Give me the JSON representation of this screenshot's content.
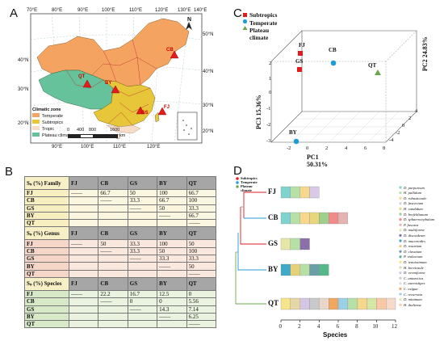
{
  "panel_labels": {
    "a": "A",
    "b": "B",
    "c": "C",
    "d": "D"
  },
  "map": {
    "lon_ticks_top": [
      "70°E",
      "80°E",
      "90°E",
      "100°E",
      "110°E",
      "120°E",
      "130°E",
      "140°E"
    ],
    "lon_ticks_bottom": [
      "90°E",
      "100°E",
      "110°E",
      "120°E"
    ],
    "lat_ticks_left": [
      "40°N",
      "30°N",
      "20°N"
    ],
    "lat_ticks_right": [
      "50°N",
      "40°N",
      "30°N"
    ],
    "inset_lat_right": "20°N",
    "legend": {
      "title": "Climatic zone",
      "items": [
        {
          "label": "Temperate",
          "color": "#f4a460"
        },
        {
          "label": "Subtropics",
          "color": "#e8c63a"
        },
        {
          "label": "Tropic",
          "color": "#f7dcc8"
        },
        {
          "label": "Plateau climate",
          "color": "#66c29a"
        }
      ]
    },
    "scale": {
      "ticks": [
        "0",
        "400",
        "800",
        "1600"
      ],
      "unit": "km"
    },
    "sites": [
      {
        "code": "CB"
      },
      {
        "code": "QT"
      },
      {
        "code": "BY"
      },
      {
        "code": "FJ"
      },
      {
        "code": "GS"
      }
    ],
    "north_arrow": "N"
  },
  "similarity_table": {
    "columns": [
      "FJ",
      "CB",
      "GS",
      "BY",
      "QT"
    ],
    "sections": [
      {
        "title": "Sₛ (%) Family",
        "rows": [
          {
            "label": "FJ",
            "cells": [
              "——",
              "66.7",
              "50",
              "100",
              "66.7"
            ]
          },
          {
            "label": "CB",
            "cells": [
              "",
              "——",
              "33.3",
              "66.7",
              "100"
            ]
          },
          {
            "label": "GS",
            "cells": [
              "",
              "",
              "——",
              "50",
              "33.3"
            ]
          },
          {
            "label": "BY",
            "cells": [
              "",
              "",
              "",
              "——",
              "66.7"
            ]
          },
          {
            "label": "QT",
            "cells": [
              "",
              "",
              "",
              "",
              "——"
            ]
          }
        ]
      },
      {
        "title": "Sₛ (%) Genus",
        "rows": [
          {
            "label": "FJ",
            "cells": [
              "——",
              "50",
              "33.3",
              "100",
              "50"
            ]
          },
          {
            "label": "CB",
            "cells": [
              "",
              "——",
              "33.3",
              "50",
              "100"
            ]
          },
          {
            "label": "GS",
            "cells": [
              "",
              "",
              "——",
              "33.3",
              "33.3"
            ]
          },
          {
            "label": "BY",
            "cells": [
              "",
              "",
              "",
              "——",
              "50"
            ]
          },
          {
            "label": "QT",
            "cells": [
              "",
              "",
              "",
              "",
              "——"
            ]
          }
        ]
      },
      {
        "title": "Sₛ (%) Species",
        "rows": [
          {
            "label": "FJ",
            "cells": [
              "——",
              "22.2",
              "16.7",
              "12.5",
              "0"
            ]
          },
          {
            "label": "CB",
            "cells": [
              "",
              "——",
              "0",
              "0",
              "5.56"
            ]
          },
          {
            "label": "GS",
            "cells": [
              "",
              "",
              "——",
              "14.3",
              "7.14"
            ]
          },
          {
            "label": "BY",
            "cells": [
              "",
              "",
              "",
              "——",
              "6.25"
            ]
          },
          {
            "label": "QT",
            "cells": [
              "",
              "",
              "",
              "",
              "——"
            ]
          }
        ]
      }
    ]
  },
  "chart_data": [
    {
      "type": "scatter",
      "dimensions": 3,
      "legend": [
        {
          "name": "Subtropics",
          "color": "#e41a1c",
          "marker": "square"
        },
        {
          "name": "Temperate",
          "color": "#1f9bd7",
          "marker": "circle"
        },
        {
          "name": "Plateau climate",
          "color": "#6aa84f",
          "marker": "triangle"
        }
      ],
      "axes": {
        "x": {
          "label": "PC1  50.31%",
          "ticks": [
            "-2",
            "0",
            "2",
            "4",
            "6",
            "8"
          ]
        },
        "y": {
          "label": "PC2  24.83%",
          "ticks": [
            "-4",
            "-2",
            "0",
            "2",
            "4"
          ]
        },
        "z": {
          "label": "PC3  15.36%",
          "ticks": [
            "-3",
            "-2",
            "-1",
            "0",
            "1",
            "2"
          ]
        }
      },
      "points": [
        {
          "label": "FJ",
          "group": "Subtropics"
        },
        {
          "label": "GS",
          "group": "Subtropics"
        },
        {
          "label": "CB",
          "group": "Temperate"
        },
        {
          "label": "BY",
          "group": "Temperate"
        },
        {
          "label": "QT",
          "group": "Plateau climate"
        }
      ]
    },
    {
      "type": "bar",
      "orientation": "horizontal",
      "stacked": true,
      "xlabel": "Species",
      "x_ticks": [
        0,
        2,
        4,
        6,
        8,
        10,
        12
      ],
      "xlim": [
        0,
        12
      ],
      "tree_legend": [
        {
          "name": "Subtropics",
          "color": "#e41a1c"
        },
        {
          "name": "Temperate",
          "color": "#1f9bd7"
        },
        {
          "name": "Plateau climate",
          "color": "#6aa84f"
        }
      ],
      "categories": [
        "FJ",
        "CB",
        "GS",
        "BY",
        "QT"
      ],
      "values": [
        4,
        7,
        3,
        5,
        12
      ],
      "segment_colors": {
        "FJ": [
          "#7fd3cf",
          "#b6e0a6",
          "#f6d78b",
          "#d9c9e6"
        ],
        "CB": [
          "#7fd3cf",
          "#b6e0a6",
          "#f6d78b",
          "#e7d67c",
          "#9fcf8a",
          "#f08b8b",
          "#e6b3b3"
        ],
        "GS": [
          "#e6e6a6",
          "#b6e0a6",
          "#8a6fa8"
        ],
        "BY": [
          "#3fa9c9",
          "#e6d17b",
          "#b6e0a6",
          "#6a9fa8",
          "#55b88a"
        ],
        "QT": [
          "#f6e58b",
          "#e6d7a6",
          "#d6c6e6",
          "#c9c9c9",
          "#e9d7c9",
          "#f0a860",
          "#9bd1e6",
          "#b6e0a6",
          "#f6d78b",
          "#d7e6a6",
          "#f7c9a6",
          "#f6d9cb"
        ]
      },
      "species_legend": [
        {
          "name": "D. purpureum",
          "color": "#7fd3cf"
        },
        {
          "name": "H. pallidum",
          "color": "#b6e0a6"
        },
        {
          "name": "D. robusticaule",
          "color": "#f6d78b"
        },
        {
          "name": "D. fuscovium",
          "color": "#d9c9e6"
        },
        {
          "name": "H. candidum",
          "color": "#e7d67c"
        },
        {
          "name": "D. brefeldianum",
          "color": "#9fcf8a"
        },
        {
          "name": "D. sphaerocephalum",
          "color": "#f08b8b"
        },
        {
          "name": "P. fuscans",
          "color": "#e6b3b3"
        },
        {
          "name": "D. multiforme",
          "color": "#e6e6a6"
        },
        {
          "name": "D. discoideum",
          "color": "#8a6fa8"
        },
        {
          "name": "D. mucoroides",
          "color": "#3fa9c9"
        },
        {
          "name": "D. rosarium",
          "color": "#e6d17b"
        },
        {
          "name": "D. clavatum",
          "color": "#6a9fa8"
        },
        {
          "name": "P. violaceum",
          "color": "#55b88a"
        },
        {
          "name": "D. tenuissimum",
          "color": "#f6e58b"
        },
        {
          "name": "H. brevicaule",
          "color": "#e6d7a6"
        },
        {
          "name": "D. vermiforme",
          "color": "#d6c6e6"
        },
        {
          "name": "C. antarctica",
          "color": "#c9c9c9"
        },
        {
          "name": "C. aureostipes",
          "color": "#e9d7c9"
        },
        {
          "name": "C. exigua",
          "color": "#f0a860"
        },
        {
          "name": "C. recurvata",
          "color": "#9bd1e6"
        },
        {
          "name": "D. minimum",
          "color": "#d7e6a6"
        },
        {
          "name": "H. thaliense",
          "color": "#f7c9a6"
        }
      ]
    }
  ]
}
